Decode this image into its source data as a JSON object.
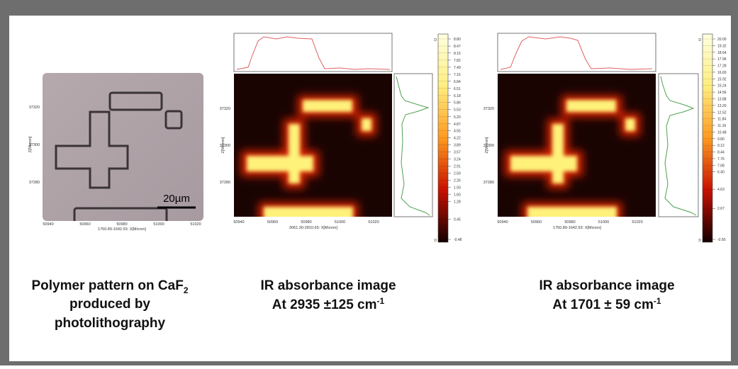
{
  "panels": [
    {
      "scale_bar": "20µm",
      "x_ticks": [
        "50940",
        "50960",
        "50980",
        "51000",
        "51020"
      ],
      "y_ticks": [
        "37320",
        "37300",
        "37280"
      ],
      "x_axis_label": "1760.89-1642.93: X[Micron]",
      "y_axis_label": "Z[Micron]"
    },
    {
      "x_ticks": [
        "50940",
        "50960",
        "50980",
        "51000",
        "51020"
      ],
      "y_ticks": [
        "37320",
        "37300",
        "37280"
      ],
      "x_axis_label": "3061.30-2810.65: X[Micron]",
      "y_axis_label": "Z[Micron]",
      "colorbar_marker": "D",
      "colorbar": [
        "8.80",
        "8.47",
        "8.15",
        "7.82",
        "7.49",
        "7.16",
        "6.84",
        "6.51",
        "6.18",
        "5.86",
        "5.53",
        "5.20",
        "4.87",
        "4.55",
        "4.22",
        "3.89",
        "3.57",
        "3.24",
        "2.91",
        "2.59",
        "2.26",
        "1.93",
        "1.60",
        "1.28",
        "0.45",
        "-0.48"
      ]
    },
    {
      "x_ticks": [
        "50940",
        "50960",
        "50980",
        "51000",
        "51020"
      ],
      "y_ticks": [
        "37320",
        "37300",
        "37280"
      ],
      "x_axis_label": "1760.89-1642.93: X[Micron]",
      "y_axis_label": "Z[Micron]",
      "colorbar_marker": "D",
      "colorbar": [
        "20.00",
        "19.32",
        "18.64",
        "17.96",
        "17.28",
        "16.60",
        "15.92",
        "15.24",
        "14.56",
        "13.88",
        "13.20",
        "12.52",
        "11.84",
        "11.16",
        "10.48",
        "9.80",
        "9.12",
        "8.44",
        "7.76",
        "7.08",
        "6.40",
        "4.63",
        "2.67",
        "-0.50"
      ]
    }
  ],
  "captions": [
    {
      "line1": "Polymer pattern on CaF",
      "line1_sub": "2",
      "line2": "produced by",
      "line3": "photolithography"
    },
    {
      "line1": "IR absorbance image",
      "line2": "At 2935 ±125 cm",
      "line2_sup": "-1"
    },
    {
      "line1": "IR absorbance image",
      "line2": "At 1701 ± 59 cm",
      "line2_sup": "-1"
    }
  ]
}
